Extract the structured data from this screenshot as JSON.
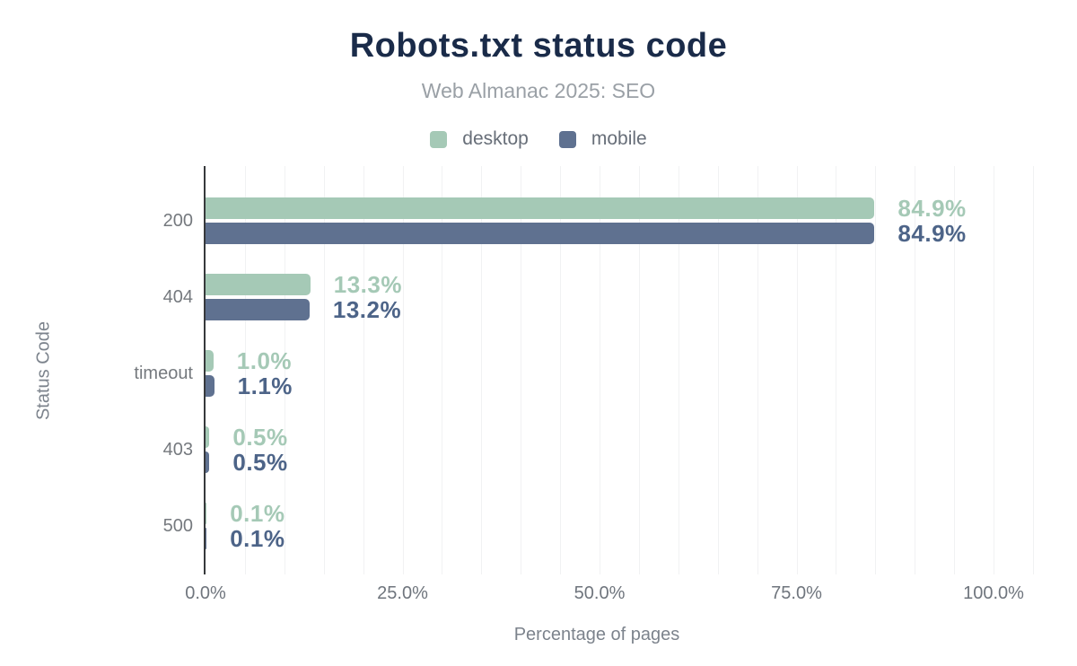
{
  "chart_data": {
    "type": "bar",
    "orientation": "horizontal",
    "title": "Robots.txt status code",
    "subtitle": "Web Almanac 2025: SEO",
    "categories": [
      "200",
      "404",
      "timeout",
      "403",
      "500"
    ],
    "series": [
      {
        "name": "desktop",
        "color": "#a5c9b6",
        "label_color": "#a5c9b6",
        "values": [
          84.9,
          13.3,
          1.0,
          0.5,
          0.1
        ],
        "labels": [
          "84.9%",
          "13.3%",
          "1.0%",
          "0.5%",
          "0.1%"
        ]
      },
      {
        "name": "mobile",
        "color": "#5f7190",
        "label_color": "#4d6488",
        "values": [
          84.9,
          13.2,
          1.1,
          0.5,
          0.1
        ],
        "labels": [
          "84.9%",
          "13.2%",
          "1.1%",
          "0.5%",
          "0.1%"
        ]
      }
    ],
    "xlabel": "Percentage of pages",
    "ylabel": "Status Code",
    "xlim": [
      0,
      105
    ],
    "xticks": [
      {
        "value": 0,
        "label": "0.0%"
      },
      {
        "value": 25,
        "label": "25.0%"
      },
      {
        "value": 50,
        "label": "50.0%"
      },
      {
        "value": 75,
        "label": "75.0%"
      },
      {
        "value": 100,
        "label": "100.0%"
      }
    ],
    "grid": true,
    "grid_step": 5,
    "legend_position": "top"
  }
}
